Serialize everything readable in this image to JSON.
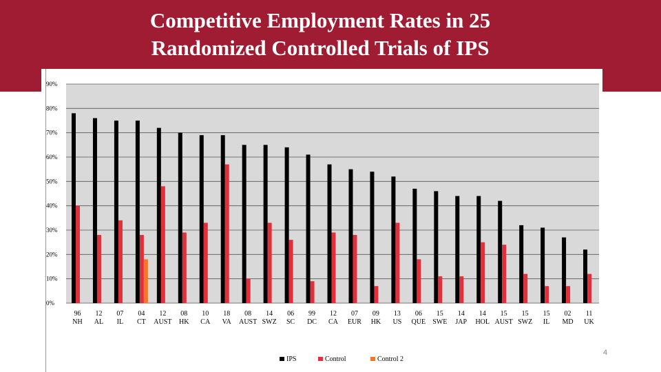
{
  "slide": {
    "title_line1": "Competitive Employment Rates in 25",
    "title_line2": "Randomized Controlled Trials of IPS",
    "page_number": "4"
  },
  "colors": {
    "banner": "#a01c33",
    "ips": "#000000",
    "control": "#e0303b",
    "control2": "#f07828",
    "plot_bg": "#d9d9d9"
  },
  "chart_data": {
    "type": "bar",
    "title": "",
    "xlabel": "",
    "ylabel": "",
    "ylim": [
      0,
      90
    ],
    "yticks": [
      "0%",
      "10%",
      "20%",
      "30%",
      "40%",
      "50%",
      "60%",
      "70%",
      "80%",
      "90%"
    ],
    "grid": true,
    "legend_position": "bottom",
    "categories": [
      [
        "96",
        "NH"
      ],
      [
        "12",
        "AL"
      ],
      [
        "07",
        "IL"
      ],
      [
        "04",
        "CT"
      ],
      [
        "12",
        "AUST"
      ],
      [
        "08",
        "HK"
      ],
      [
        "10",
        "CA"
      ],
      [
        "18",
        "VA"
      ],
      [
        "08",
        "AUST"
      ],
      [
        "14",
        "SWZ"
      ],
      [
        "06",
        "SC"
      ],
      [
        "99",
        "DC"
      ],
      [
        "12",
        "CA"
      ],
      [
        "07",
        "EUR"
      ],
      [
        "09",
        "HK"
      ],
      [
        "13",
        "US"
      ],
      [
        "06",
        "QUE"
      ],
      [
        "15",
        "SWE"
      ],
      [
        "14",
        "JAP"
      ],
      [
        "14",
        "HOL"
      ],
      [
        "15",
        "AUST"
      ],
      [
        "15",
        "SWZ"
      ],
      [
        "15",
        "IL"
      ],
      [
        "02",
        "MD"
      ],
      [
        "11",
        "UK"
      ]
    ],
    "series": [
      {
        "name": "IPS",
        "values": [
          78,
          76,
          75,
          75,
          72,
          70,
          69,
          69,
          65,
          65,
          64,
          61,
          57,
          55,
          54,
          52,
          47,
          46,
          44,
          44,
          42,
          32,
          31,
          27,
          22
        ]
      },
      {
        "name": "Control",
        "values": [
          40,
          28,
          34,
          28,
          48,
          29,
          33,
          57,
          10,
          33,
          26,
          9,
          29,
          28,
          7,
          33,
          18,
          11,
          11,
          25,
          24,
          12,
          7,
          7,
          12
        ]
      },
      {
        "name": "Control 2",
        "values": [
          null,
          null,
          null,
          18,
          null,
          null,
          null,
          null,
          null,
          null,
          null,
          null,
          null,
          null,
          null,
          null,
          null,
          null,
          null,
          null,
          null,
          null,
          null,
          null,
          null
        ]
      }
    ]
  }
}
